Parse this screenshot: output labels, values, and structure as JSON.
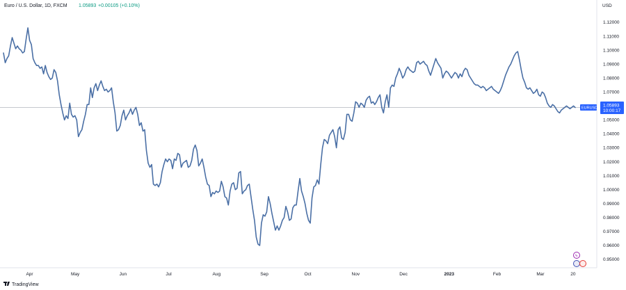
{
  "header": {
    "title": "Euro / U.S. Dollar, 1D, FXCM",
    "last": "1.05893",
    "change": "+0.00105 (+0.10%)"
  },
  "axis": {
    "currency": "USD"
  },
  "price_label": {
    "symbol": "EURUSD",
    "price": "1.05893",
    "countdown": "10:00:17"
  },
  "branding": {
    "name": "TradingView"
  },
  "colors": {
    "line": "#4a6fa5",
    "price_badge": "#2962ff",
    "price_line": "#b2b5be",
    "axis_border": "#e0e3eb",
    "positive": "#089981"
  },
  "chart_data": {
    "type": "line",
    "title": "Euro / U.S. Dollar, 1D, FXCM",
    "xlabel": "",
    "ylabel": "USD",
    "ylim": [
      0.9445,
      1.1255
    ],
    "y_ticks": [
      1.12,
      1.11,
      1.1,
      1.09,
      1.08,
      1.07,
      1.06,
      1.05,
      1.04,
      1.03,
      1.02,
      1.01,
      1.0,
      0.99,
      0.98,
      0.97,
      0.96,
      0.95
    ],
    "y_tick_labels": [
      "1.12000",
      "1.11000",
      "1.10000",
      "1.09000",
      "1.08000",
      "1.07000",
      "1.06000",
      "1.05000",
      "1.04000",
      "1.03000",
      "1.02000",
      "1.01000",
      "1.00000",
      "0.99000",
      "0.98000",
      "0.97000",
      "0.96000",
      "0.95000"
    ],
    "x_ticks": [
      {
        "label": "Apr",
        "index": 12
      },
      {
        "label": "May",
        "index": 33
      },
      {
        "label": "Jun",
        "index": 55
      },
      {
        "label": "Jul",
        "index": 76
      },
      {
        "label": "Aug",
        "index": 98
      },
      {
        "label": "Sep",
        "index": 120
      },
      {
        "label": "Oct",
        "index": 140
      },
      {
        "label": "Nov",
        "index": 162
      },
      {
        "label": "Dec",
        "index": 184
      },
      {
        "label": "2023",
        "index": 205
      },
      {
        "label": "Feb",
        "index": 227
      },
      {
        "label": "Mar",
        "index": 247
      },
      {
        "label": "20",
        "index": 262
      }
    ],
    "x_max_index": 263,
    "last_price": 1.05893,
    "series": [
      {
        "values": [
          1.098,
          1.091,
          1.094,
          1.096,
          1.103,
          1.109,
          1.105,
          1.101,
          1.103,
          1.101,
          1.1,
          1.098,
          1.099,
          1.108,
          1.116,
          1.107,
          1.104,
          1.094,
          1.091,
          1.089,
          1.089,
          1.087,
          1.088,
          1.083,
          1.089,
          1.084,
          1.081,
          1.079,
          1.08,
          1.086,
          1.084,
          1.078,
          1.068,
          1.061,
          1.055,
          1.05,
          1.053,
          1.051,
          1.062,
          1.054,
          1.052,
          1.053,
          1.05,
          1.038,
          1.041,
          1.043,
          1.049,
          1.054,
          1.061,
          1.061,
          1.073,
          1.066,
          1.073,
          1.076,
          1.071,
          1.075,
          1.078,
          1.074,
          1.071,
          1.072,
          1.07,
          1.071,
          1.073,
          1.063,
          1.055,
          1.042,
          1.043,
          1.046,
          1.053,
          1.057,
          1.05,
          1.053,
          1.055,
          1.058,
          1.054,
          1.057,
          1.059,
          1.054,
          1.046,
          1.048,
          1.042,
          1.043,
          1.028,
          1.019,
          1.016,
          1.018,
          1.004,
          1.003,
          1.004,
          1.002,
          1.005,
          1.013,
          1.018,
          1.022,
          1.02,
          1.022,
          1.021,
          1.015,
          1.022,
          1.021,
          1.026,
          1.025,
          1.016,
          1.019,
          1.02,
          1.021,
          1.016,
          1.017,
          1.021,
          1.029,
          1.032,
          1.028,
          1.017,
          1.019,
          1.022,
          1.016,
          1.009,
          1.004,
          1.003,
          0.995,
          0.998,
          0.997,
          0.999,
          0.998,
          0.999,
          1.006,
          1.002,
          0.995,
          0.994,
          0.989,
          0.999,
          1.004,
          1.005,
          1.0,
          1.001,
          1.012,
          1.013,
          0.997,
          0.999,
          1.0,
          1.003,
          1.004,
          0.995,
          0.986,
          0.978,
          0.966,
          0.961,
          0.96,
          0.976,
          0.982,
          0.981,
          0.984,
          0.995,
          0.99,
          0.983,
          0.977,
          0.971,
          0.974,
          0.971,
          0.974,
          0.978,
          0.98,
          0.988,
          0.984,
          0.978,
          0.979,
          0.987,
          0.989,
          0.989,
          0.999,
          1.008,
          0.999,
          0.995,
          0.99,
          0.983,
          0.978,
          0.976,
          0.994,
          1.002,
          1.003,
          1.007,
          1.004,
          1.018,
          1.03,
          1.036,
          1.035,
          1.033,
          1.039,
          1.041,
          1.043,
          1.038,
          1.03,
          1.043,
          1.045,
          1.037,
          1.036,
          1.041,
          1.054,
          1.054,
          1.05,
          1.049,
          1.055,
          1.063,
          1.062,
          1.059,
          1.062,
          1.061,
          1.059,
          1.064,
          1.066,
          1.067,
          1.062,
          1.063,
          1.061,
          1.063,
          1.066,
          1.068,
          1.059,
          1.055,
          1.063,
          1.068,
          1.059,
          1.073,
          1.075,
          1.074,
          1.08,
          1.083,
          1.087,
          1.084,
          1.08,
          1.082,
          1.086,
          1.088,
          1.086,
          1.085,
          1.084,
          1.085,
          1.091,
          1.092,
          1.09,
          1.091,
          1.092,
          1.09,
          1.089,
          1.085,
          1.082,
          1.086,
          1.09,
          1.094,
          1.091,
          1.089,
          1.087,
          1.08,
          1.083,
          1.085,
          1.084,
          1.082,
          1.08,
          1.082,
          1.084,
          1.083,
          1.08,
          1.083,
          1.081,
          1.085,
          1.087,
          1.086,
          1.082,
          1.08,
          1.078,
          1.076,
          1.075,
          1.075,
          1.074,
          1.073,
          1.074,
          1.073,
          1.071,
          1.072,
          1.073,
          1.074,
          1.072,
          1.071,
          1.07,
          1.069,
          1.071,
          1.074,
          1.078,
          1.082,
          1.085,
          1.088,
          1.09,
          1.093,
          1.096,
          1.098,
          1.099,
          1.093,
          1.086,
          1.08,
          1.077,
          1.073,
          1.072,
          1.073,
          1.071,
          1.069,
          1.07,
          1.072,
          1.068,
          1.067,
          1.07,
          1.069,
          1.066,
          1.062,
          1.06,
          1.059,
          1.061,
          1.06,
          1.058,
          1.056,
          1.055,
          1.057,
          1.058,
          1.059,
          1.06,
          1.059,
          1.058,
          1.059,
          1.06,
          1.0589
        ]
      }
    ]
  }
}
